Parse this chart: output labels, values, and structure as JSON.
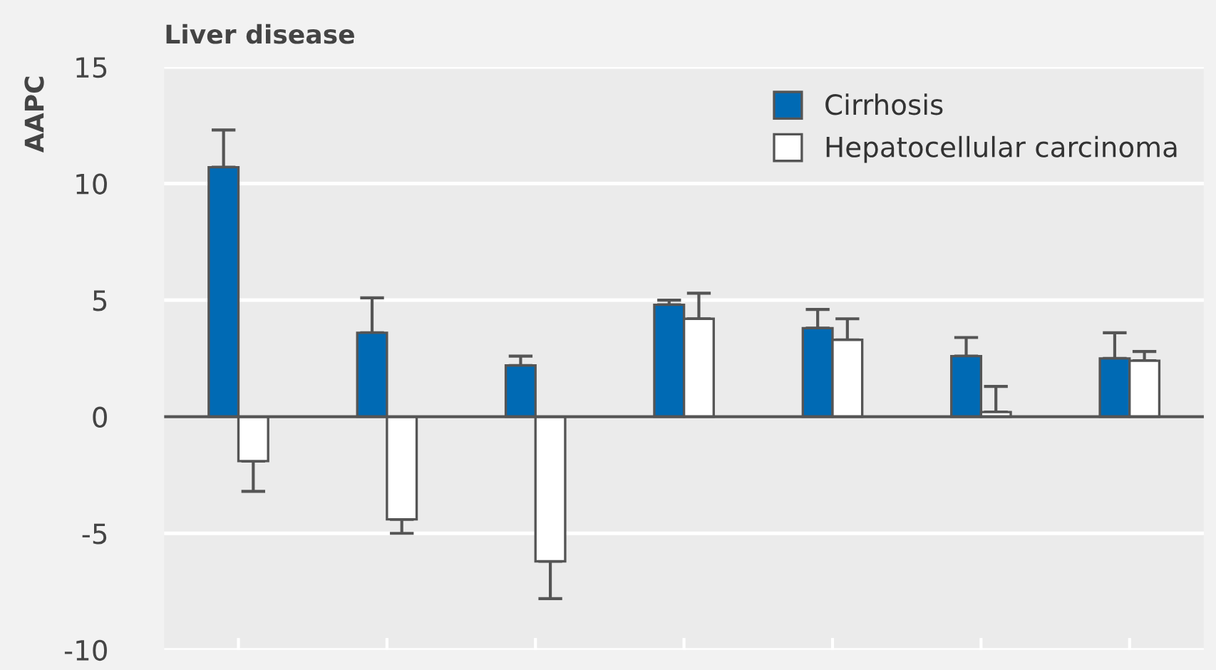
{
  "chart_data": {
    "type": "bar",
    "title": "Liver disease",
    "ylabel": "AAPC",
    "categories": [
      null,
      null,
      null,
      null,
      null,
      null,
      null
    ],
    "series": [
      {
        "name": "Cirrhosis",
        "color": "#006ab4",
        "values": [
          10.7,
          3.6,
          2.2,
          4.8,
          3.8,
          2.6,
          2.5
        ],
        "errors": [
          [
            10.7,
            12.3
          ],
          [
            3.6,
            5.1
          ],
          [
            2.2,
            2.6
          ],
          [
            4.8,
            5.0
          ],
          [
            3.8,
            4.6
          ],
          [
            2.6,
            3.4
          ],
          [
            2.5,
            3.6
          ]
        ]
      },
      {
        "name": "Hepatocellular carcinoma",
        "color": "#ffffff",
        "values": [
          -1.9,
          -4.4,
          -6.2,
          4.2,
          3.3,
          0.2,
          2.4
        ],
        "errors": [
          [
            -3.2,
            -1.9
          ],
          [
            -5.0,
            -4.4
          ],
          [
            -7.8,
            -6.2
          ],
          [
            4.2,
            5.3
          ],
          [
            3.3,
            4.2
          ],
          [
            0.2,
            1.3
          ],
          [
            2.4,
            2.8
          ]
        ]
      }
    ],
    "ylim": [
      -10,
      15
    ],
    "yticks": [
      -10,
      -5,
      0,
      5,
      10,
      15
    ],
    "ref_lines": [
      {
        "axis": "y",
        "value": 0,
        "color": "#555555"
      }
    ],
    "grid": "y",
    "legend": "top right"
  }
}
